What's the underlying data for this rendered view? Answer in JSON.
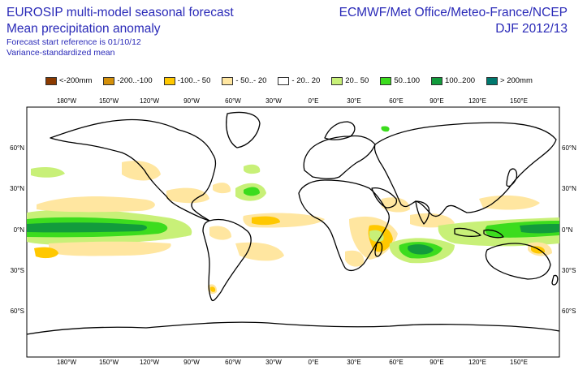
{
  "header": {
    "title_line1": "EUROSIP multi-model seasonal forecast",
    "title_line2": "Mean precipitation anomaly",
    "subtitle_line1": "Forecast start reference is 01/10/12",
    "subtitle_line2": "Variance-standardized mean",
    "source": "ECMWF/Met Office/Meteo-France/NCEP",
    "period": "DJF 2012/13"
  },
  "legend": [
    {
      "label": "<-200mm",
      "color": "#8b3a00"
    },
    {
      "label": "-200..-100",
      "color": "#d4900a"
    },
    {
      "label": "-100..- 50",
      "color": "#ffc800"
    },
    {
      "label": "- 50..- 20",
      "color": "#ffe6a0"
    },
    {
      "label": "- 20.. 20",
      "color": "#ffffff"
    },
    {
      "label": "20.. 50",
      "color": "#c8f078"
    },
    {
      "label": "50..100",
      "color": "#3cdc1e"
    },
    {
      "label": "100..200",
      "color": "#129b3c"
    },
    {
      "label": "> 200mm",
      "color": "#00786e"
    }
  ],
  "axes": {
    "lon_labels": [
      "180°W",
      "150°W",
      "120°W",
      "90°W",
      "60°W",
      "30°W",
      "0°E",
      "30°E",
      "60°E",
      "90°E",
      "120°E",
      "150°E"
    ],
    "lat_labels_left": [
      "60°N",
      "30°N",
      "0°N",
      "30°S",
      "60°S"
    ],
    "lat_labels_right": [
      "60°N",
      "30°N",
      "0°N",
      "30°S",
      "60°S"
    ]
  }
}
